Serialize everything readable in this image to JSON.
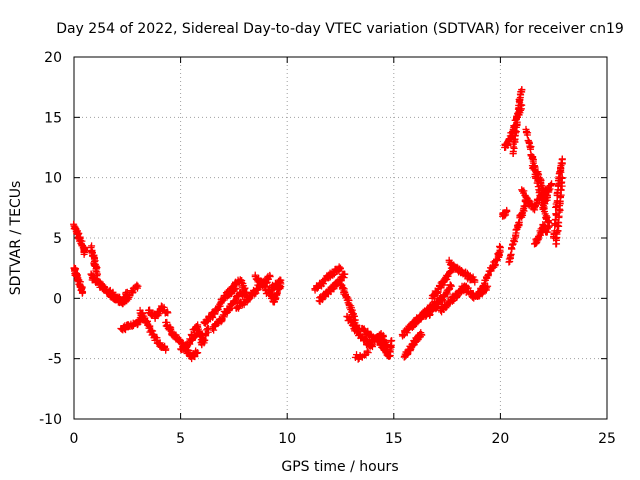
{
  "chart_data": {
    "type": "scatter",
    "title": "Day 254 of 2022, Sidereal Day-to-day VTEC variation (SDTVAR) for receiver cn19",
    "xlabel": "GPS time / hours",
    "ylabel": "SDTVAR / TECUs",
    "xlim": [
      0,
      25
    ],
    "ylim": [
      -10,
      20
    ],
    "xticks": [
      0,
      5,
      10,
      15,
      20,
      25
    ],
    "yticks": [
      -10,
      -5,
      0,
      5,
      10,
      15,
      20
    ],
    "xtick_labels": [
      "0",
      "5",
      "10",
      "15",
      "20",
      "25"
    ],
    "ytick_labels": [
      "-10",
      "-5",
      "0",
      "5",
      "10",
      "15",
      "20"
    ],
    "grid": true,
    "marker": "+",
    "color": "#ff0000",
    "series": [
      {
        "name": "SDTVAR",
        "segments": [
          {
            "x": [
              0.0,
              0.15,
              0.3,
              0.45,
              0.5
            ],
            "y": [
              6.0,
              5.4,
              4.8,
              4.2,
              3.8
            ]
          },
          {
            "x": [
              0.0,
              0.1,
              0.2,
              0.3,
              0.4
            ],
            "y": [
              2.5,
              2.0,
              1.5,
              1.0,
              0.5
            ]
          },
          {
            "x": [
              0.8,
              0.9,
              1.0,
              1.1
            ],
            "y": [
              4.2,
              3.5,
              2.8,
              2.0
            ]
          },
          {
            "x": [
              0.8,
              1.0,
              1.3,
              1.6,
              1.9,
              2.2,
              2.5
            ],
            "y": [
              2.0,
              1.4,
              1.0,
              0.5,
              0.1,
              -0.3,
              0.5
            ]
          },
          {
            "x": [
              1.7,
              2.0,
              2.3,
              2.6,
              3.0
            ],
            "y": [
              0.5,
              0.0,
              -0.3,
              0.3,
              1.0
            ]
          },
          {
            "x": [
              2.2,
              2.6,
              3.0,
              3.2
            ],
            "y": [
              -2.5,
              -2.3,
              -2.0,
              -1.5
            ]
          },
          {
            "x": [
              3.1,
              3.4,
              3.7,
              4.0,
              4.3
            ],
            "y": [
              -1.0,
              -2.0,
              -3.0,
              -3.8,
              -4.3
            ]
          },
          {
            "x": [
              3.5,
              3.8,
              4.1,
              4.4
            ],
            "y": [
              -1.0,
              -1.5,
              -0.8,
              -1.2
            ]
          },
          {
            "x": [
              4.3,
              4.6,
              4.9,
              5.2,
              5.5,
              5.8
            ],
            "y": [
              -2.0,
              -2.8,
              -3.5,
              -4.2,
              -4.8,
              -4.5
            ]
          },
          {
            "x": [
              5.0,
              5.3,
              5.6,
              5.9,
              6.1
            ],
            "y": [
              -4.2,
              -3.8,
              -3.3,
              -2.8,
              -3.5
            ]
          },
          {
            "x": [
              5.5,
              5.8,
              6.0,
              6.3
            ],
            "y": [
              -3.0,
              -2.2,
              -3.8,
              -2.5
            ]
          },
          {
            "x": [
              6.1,
              6.4,
              6.7,
              7.0,
              7.3,
              7.6
            ],
            "y": [
              -2.0,
              -1.5,
              -1.0,
              0.0,
              0.5,
              0.8
            ]
          },
          {
            "x": [
              6.5,
              6.8,
              7.1,
              7.4,
              7.7,
              8.0
            ],
            "y": [
              -2.5,
              -2.0,
              -1.2,
              -0.5,
              0.2,
              0.5
            ]
          },
          {
            "x": [
              7.2,
              7.5,
              7.8,
              8.1
            ],
            "y": [
              0.2,
              1.0,
              1.5,
              0.5
            ]
          },
          {
            "x": [
              7.6,
              8.0,
              8.3,
              8.6,
              8.9,
              9.2
            ],
            "y": [
              -0.8,
              -0.3,
              0.2,
              0.8,
              1.3,
              1.8
            ]
          },
          {
            "x": [
              8.5,
              8.8,
              9.1,
              9.4,
              9.7
            ],
            "y": [
              1.8,
              1.2,
              0.5,
              1.0,
              1.5
            ]
          },
          {
            "x": [
              9.2,
              9.4,
              9.6,
              9.7
            ],
            "y": [
              0.5,
              -0.3,
              0.8,
              1.2
            ]
          },
          {
            "x": [
              11.3,
              11.6,
              11.9,
              12.2,
              12.5
            ],
            "y": [
              0.8,
              1.2,
              1.7,
              2.2,
              2.5
            ]
          },
          {
            "x": [
              11.5,
              11.8,
              12.1,
              12.4,
              12.7
            ],
            "y": [
              -0.2,
              0.3,
              0.8,
              1.3,
              2.0
            ]
          },
          {
            "x": [
              12.5,
              12.7,
              12.9,
              13.1,
              13.3
            ],
            "y": [
              1.2,
              0.5,
              -0.5,
              -1.5,
              -2.5
            ]
          },
          {
            "x": [
              12.8,
              13.1,
              13.4,
              13.7,
              14.0
            ],
            "y": [
              -1.5,
              -2.3,
              -3.0,
              -3.6,
              -4.0
            ]
          },
          {
            "x": [
              13.5,
              13.8,
              14.1,
              14.4,
              14.7
            ],
            "y": [
              -2.5,
              -3.0,
              -3.5,
              -3.0,
              -4.0
            ]
          },
          {
            "x": [
              14.2,
              14.4,
              14.6,
              14.8,
              14.9
            ],
            "y": [
              -3.2,
              -3.8,
              -4.2,
              -4.8,
              -3.5
            ]
          },
          {
            "x": [
              13.2,
              13.8
            ],
            "y": [
              -4.9,
              -4.5
            ]
          },
          {
            "x": [
              15.4,
              15.7,
              16.0,
              16.3,
              16.6
            ],
            "y": [
              -3.0,
              -2.5,
              -2.0,
              -1.5,
              -1.0
            ]
          },
          {
            "x": [
              15.5,
              15.7,
              15.9,
              16.1,
              16.3
            ],
            "y": [
              -4.8,
              -4.3,
              -3.8,
              -3.3,
              -3.0
            ]
          },
          {
            "x": [
              16.0,
              16.3,
              16.6,
              16.9,
              17.2
            ],
            "y": [
              -2.0,
              -1.5,
              -1.0,
              -0.5,
              0.0
            ]
          },
          {
            "x": [
              16.5,
              16.8,
              17.1,
              17.4,
              17.7
            ],
            "y": [
              -1.5,
              -1.0,
              -0.5,
              0.3,
              1.0
            ]
          },
          {
            "x": [
              16.8,
              17.1,
              17.4,
              17.7
            ],
            "y": [
              0.0,
              0.8,
              1.5,
              2.5
            ]
          },
          {
            "x": [
              17.2,
              17.5,
              17.8,
              18.1,
              18.4
            ],
            "y": [
              -1.0,
              -0.5,
              0.0,
              0.5,
              1.0
            ]
          },
          {
            "x": [
              17.6,
              17.9,
              18.2,
              18.5,
              18.8
            ],
            "y": [
              3.0,
              2.5,
              2.2,
              1.8,
              1.5
            ]
          },
          {
            "x": [
              18.2,
              18.5,
              18.8,
              19.1,
              19.4
            ],
            "y": [
              1.0,
              0.6,
              0.2,
              0.5,
              1.0
            ]
          },
          {
            "x": [
              19.0,
              19.3,
              19.6,
              19.9,
              20.0
            ],
            "y": [
              0.5,
              1.5,
              2.5,
              3.5,
              4.2
            ]
          },
          {
            "x": [
              20.1,
              20.3
            ],
            "y": [
              6.8,
              7.2
            ]
          },
          {
            "x": [
              20.2,
              20.4,
              20.6,
              20.8,
              21.0
            ],
            "y": [
              12.5,
              13.0,
              14.0,
              15.0,
              16.0
            ]
          },
          {
            "x": [
              20.6,
              20.7,
              20.8,
              20.9,
              21.0
            ],
            "y": [
              12.0,
              13.5,
              15.0,
              16.5,
              17.3
            ]
          },
          {
            "x": [
              20.4,
              20.6,
              20.8,
              21.0,
              21.2
            ],
            "y": [
              3.0,
              4.5,
              6.0,
              7.0,
              8.0
            ]
          },
          {
            "x": [
              21.0,
              21.3,
              21.6,
              21.9,
              22.2
            ],
            "y": [
              9.0,
              8.0,
              7.5,
              8.5,
              9.0
            ]
          },
          {
            "x": [
              21.2,
              21.4,
              21.6,
              21.8,
              22.0
            ],
            "y": [
              14.0,
              12.5,
              11.0,
              10.0,
              9.0
            ]
          },
          {
            "x": [
              21.5,
              21.8,
              22.1,
              22.3
            ],
            "y": [
              11.0,
              9.0,
              7.0,
              6.0
            ]
          },
          {
            "x": [
              21.6,
              21.8,
              22.0,
              22.2
            ],
            "y": [
              4.5,
              5.0,
              6.0,
              5.5
            ]
          },
          {
            "x": [
              22.0,
              22.2,
              22.4
            ],
            "y": [
              7.5,
              8.5,
              9.5
            ]
          },
          {
            "x": [
              22.5,
              22.6,
              22.7,
              22.8,
              22.9
            ],
            "y": [
              5.0,
              7.0,
              9.0,
              10.5,
              11.5
            ]
          },
          {
            "x": [
              22.6,
              22.7,
              22.8,
              22.9
            ],
            "y": [
              4.5,
              6.0,
              8.0,
              10.0
            ]
          }
        ]
      }
    ]
  }
}
